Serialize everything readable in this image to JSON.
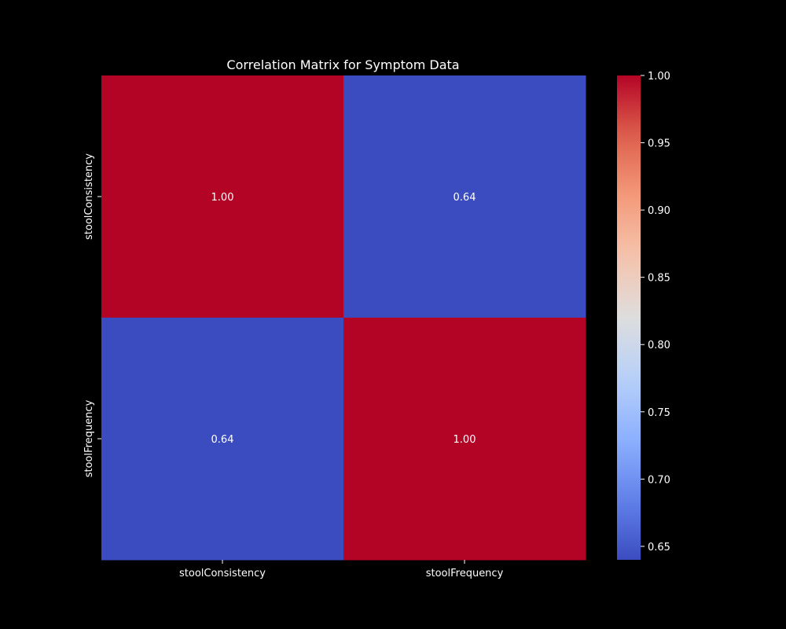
{
  "chart_data": {
    "type": "heatmap",
    "title": "Correlation Matrix for Symptom Data",
    "x_categories": [
      "stoolConsistency",
      "stoolFrequency"
    ],
    "y_categories": [
      "stoolConsistency",
      "stoolFrequency"
    ],
    "values": [
      [
        1.0,
        0.64
      ],
      [
        0.64,
        1.0
      ]
    ],
    "cell_labels": [
      [
        "1.00",
        "0.64"
      ],
      [
        "0.64",
        "1.00"
      ]
    ],
    "colormap": "coolwarm",
    "color_min": "#3b4cc0",
    "color_max": "#b40426",
    "colorbar": {
      "min": 0.64,
      "max": 1.0,
      "ticks": [
        0.65,
        0.7,
        0.75,
        0.8,
        0.85,
        0.9,
        0.95,
        1.0
      ],
      "tick_labels": [
        "0.65",
        "0.70",
        "0.75",
        "0.80",
        "0.85",
        "0.90",
        "0.95",
        "1.00"
      ]
    },
    "xlabel": "",
    "ylabel": ""
  },
  "colors": {
    "background": "#000000",
    "text": "#ffffff"
  }
}
